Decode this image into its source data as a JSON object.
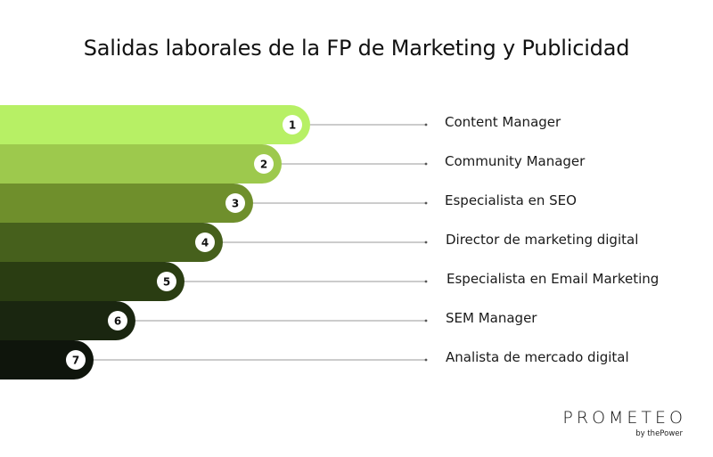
{
  "title": "Salidas laborales de la FP de Marketing y Publicidad",
  "items": [
    {
      "number": "1",
      "label": "Content Manager",
      "color": "#b7f065"
    },
    {
      "number": "2",
      "label": "Community Manager",
      "color": "#9dc94d"
    },
    {
      "number": "3",
      "label": "Especialista en SEO",
      "color": "#6f8f2c"
    },
    {
      "number": "4",
      "label": "Director de marketing digital",
      "color": "#46601c"
    },
    {
      "number": "5",
      "label": "Especialista en Email Marketing",
      "color": "#2a3d12"
    },
    {
      "number": "6",
      "label": "SEM Manager",
      "color": "#1a2610"
    },
    {
      "number": "7",
      "label": "Analista de mercado digital",
      "color": "#0f150c"
    }
  ],
  "logo": {
    "word": "PROMETEO",
    "sub": "by thePower"
  }
}
